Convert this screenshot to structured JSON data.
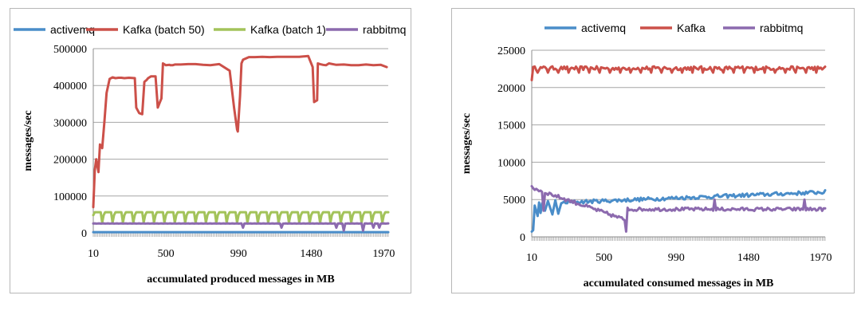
{
  "colors": {
    "activemq": "#4a8dc9",
    "kafka": "#cc5049",
    "kafka_batch1": "#a3c35a",
    "rabbitmq": "#8c6aae"
  },
  "chart_data": [
    {
      "type": "line",
      "xlabel": "accumulated produced messages in MB",
      "ylabel": "messages/sec",
      "ylim": [
        0,
        500000
      ],
      "yticks": [
        "0",
        "100000",
        "200000",
        "300000",
        "400000",
        "500000"
      ],
      "xlim": [
        10,
        2000
      ],
      "xticks": [
        "10",
        "500",
        "990",
        "1480",
        "1970"
      ],
      "legend_position": "top",
      "grid": true,
      "series": [
        {
          "name": "activemq",
          "color_key": "activemq",
          "x": [
            10,
            2000
          ],
          "y": [
            2000,
            2000
          ]
        },
        {
          "name": "Kafka (batch 50)",
          "color_key": "kafka",
          "x": [
            10,
            20,
            30,
            45,
            55,
            70,
            85,
            100,
            120,
            140,
            160,
            180,
            200,
            220,
            250,
            290,
            300,
            320,
            340,
            355,
            370,
            380,
            400,
            430,
            445,
            455,
            470,
            480,
            500,
            525,
            530,
            545,
            560,
            600,
            650,
            700,
            750,
            800,
            860,
            930,
            960,
            980,
            985,
            1000,
            1010,
            1020,
            1060,
            1100,
            1150,
            1200,
            1250,
            1300,
            1350,
            1400,
            1460,
            1490,
            1500,
            1520,
            1525,
            1540,
            1560,
            1580,
            1600,
            1650,
            1700,
            1750,
            1800,
            1850,
            1900,
            1950,
            1990
          ],
          "y": [
            70000,
            170000,
            200000,
            165000,
            240000,
            230000,
            300000,
            380000,
            418000,
            422000,
            420000,
            421000,
            421000,
            420000,
            421000,
            420000,
            340000,
            325000,
            322000,
            410000,
            415000,
            420000,
            425000,
            425000,
            340000,
            350000,
            365000,
            460000,
            455000,
            456000,
            455000,
            455000,
            457000,
            457000,
            458000,
            458000,
            456000,
            455000,
            458000,
            440000,
            340000,
            280000,
            275000,
            372000,
            460000,
            470000,
            477000,
            477000,
            478000,
            477000,
            478000,
            478000,
            478000,
            478000,
            480000,
            450000,
            355000,
            360000,
            460000,
            458000,
            456000,
            455000,
            460000,
            456000,
            457000,
            455000,
            455000,
            457000,
            455000,
            456000,
            450000
          ]
        },
        {
          "name": "Kafka (batch 1)",
          "color_key": "kafka_batch1",
          "x": [],
          "y": []
        },
        {
          "name": "rabbitmq",
          "color_key": "rabbitmq",
          "x": [],
          "y": []
        }
      ]
    },
    {
      "type": "line",
      "xlabel": "accumulated consumed messages in MB",
      "ylabel": "messages/sec",
      "ylim": [
        0,
        25000
      ],
      "yticks": [
        "0",
        "5000",
        "10000",
        "15000",
        "20000",
        "25000"
      ],
      "xlim": [
        10,
        2000
      ],
      "xticks": [
        "10",
        "500",
        "990",
        "1480",
        "1970"
      ],
      "legend_position": "top",
      "grid": true,
      "series": [
        {
          "name": "activemq",
          "color_key": "activemq",
          "x": [],
          "y": []
        },
        {
          "name": "Kafka",
          "color_key": "kafka",
          "x": [],
          "y": []
        },
        {
          "name": "rabbitmq",
          "color_key": "rabbitmq",
          "x": [],
          "y": []
        }
      ]
    }
  ]
}
